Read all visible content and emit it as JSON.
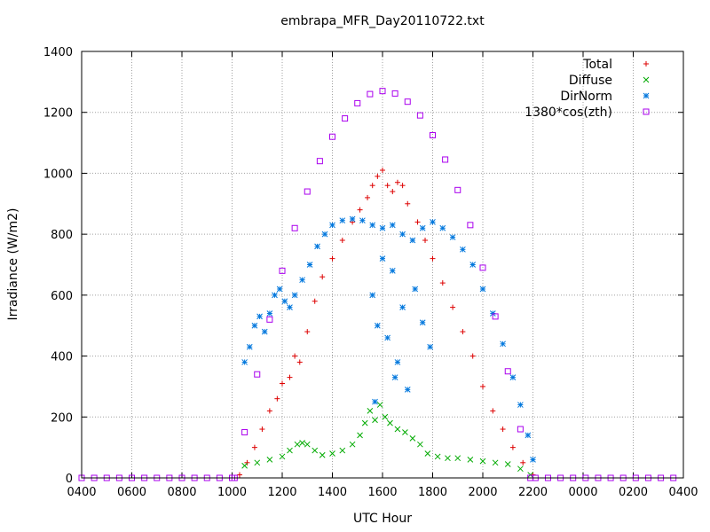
{
  "chart_data": {
    "type": "scatter",
    "title": "embrapa_MFR_Day20110722.txt",
    "xlabel": "UTC Hour",
    "ylabel": "Irradiance (W/m2)",
    "xlim": [
      0,
      24
    ],
    "ylim": [
      0,
      1400
    ],
    "grid": true,
    "legend_position": "top-right",
    "x_ticks": [
      {
        "value": 0,
        "label": "0400"
      },
      {
        "value": 2,
        "label": "0600"
      },
      {
        "value": 4,
        "label": "0800"
      },
      {
        "value": 6,
        "label": "1000"
      },
      {
        "value": 8,
        "label": "1200"
      },
      {
        "value": 10,
        "label": "1400"
      },
      {
        "value": 12,
        "label": "1600"
      },
      {
        "value": 14,
        "label": "1800"
      },
      {
        "value": 16,
        "label": "2000"
      },
      {
        "value": 18,
        "label": "2200"
      },
      {
        "value": 20,
        "label": "0000"
      },
      {
        "value": 22,
        "label": "0200"
      },
      {
        "value": 24,
        "label": "0400"
      }
    ],
    "y_ticks": [
      0,
      200,
      400,
      600,
      800,
      1000,
      1200,
      1400
    ],
    "series": [
      {
        "name": "Total",
        "marker": "plus",
        "color": "#dd0000",
        "points": [
          [
            6.3,
            10
          ],
          [
            6.6,
            50
          ],
          [
            6.9,
            100
          ],
          [
            7.2,
            160
          ],
          [
            7.5,
            220
          ],
          [
            7.8,
            260
          ],
          [
            8.0,
            310
          ],
          [
            8.3,
            330
          ],
          [
            8.5,
            400
          ],
          [
            8.7,
            380
          ],
          [
            9.0,
            480
          ],
          [
            9.3,
            580
          ],
          [
            9.6,
            660
          ],
          [
            10.0,
            720
          ],
          [
            10.4,
            780
          ],
          [
            10.8,
            840
          ],
          [
            11.1,
            880
          ],
          [
            11.4,
            920
          ],
          [
            11.6,
            960
          ],
          [
            11.8,
            990
          ],
          [
            12.0,
            1010
          ],
          [
            12.2,
            960
          ],
          [
            12.4,
            940
          ],
          [
            12.6,
            970
          ],
          [
            12.8,
            960
          ],
          [
            13.0,
            900
          ],
          [
            13.4,
            840
          ],
          [
            13.7,
            780
          ],
          [
            14.0,
            720
          ],
          [
            14.4,
            640
          ],
          [
            14.8,
            560
          ],
          [
            15.2,
            480
          ],
          [
            15.6,
            400
          ],
          [
            16.0,
            300
          ],
          [
            16.4,
            220
          ],
          [
            16.8,
            160
          ],
          [
            17.2,
            100
          ],
          [
            17.6,
            50
          ],
          [
            18.0,
            10
          ]
        ]
      },
      {
        "name": "Diffuse",
        "marker": "cross",
        "color": "#00aa00",
        "points": [
          [
            6.5,
            40
          ],
          [
            7.0,
            50
          ],
          [
            7.5,
            60
          ],
          [
            8.0,
            70
          ],
          [
            8.3,
            90
          ],
          [
            8.6,
            110
          ],
          [
            8.8,
            115
          ],
          [
            9.0,
            110
          ],
          [
            9.3,
            90
          ],
          [
            9.6,
            75
          ],
          [
            10.0,
            80
          ],
          [
            10.4,
            90
          ],
          [
            10.8,
            110
          ],
          [
            11.1,
            140
          ],
          [
            11.3,
            180
          ],
          [
            11.5,
            220
          ],
          [
            11.7,
            190
          ],
          [
            11.9,
            240
          ],
          [
            12.1,
            200
          ],
          [
            12.3,
            180
          ],
          [
            12.6,
            160
          ],
          [
            12.9,
            150
          ],
          [
            13.2,
            130
          ],
          [
            13.5,
            110
          ],
          [
            13.8,
            80
          ],
          [
            14.2,
            70
          ],
          [
            14.6,
            65
          ],
          [
            15.0,
            65
          ],
          [
            15.5,
            60
          ],
          [
            16.0,
            55
          ],
          [
            16.5,
            50
          ],
          [
            17.0,
            45
          ],
          [
            17.5,
            30
          ],
          [
            17.9,
            10
          ]
        ]
      },
      {
        "name": "DirNorm",
        "marker": "star",
        "color": "#0077dd",
        "points": [
          [
            6.5,
            380
          ],
          [
            6.7,
            430
          ],
          [
            6.9,
            500
          ],
          [
            7.1,
            530
          ],
          [
            7.3,
            480
          ],
          [
            7.5,
            540
          ],
          [
            7.7,
            600
          ],
          [
            7.9,
            620
          ],
          [
            8.1,
            580
          ],
          [
            8.3,
            560
          ],
          [
            8.5,
            600
          ],
          [
            8.8,
            650
          ],
          [
            9.1,
            700
          ],
          [
            9.4,
            760
          ],
          [
            9.7,
            800
          ],
          [
            10.0,
            830
          ],
          [
            10.4,
            845
          ],
          [
            10.8,
            850
          ],
          [
            11.2,
            845
          ],
          [
            11.6,
            830
          ],
          [
            12.0,
            820
          ],
          [
            12.4,
            830
          ],
          [
            12.8,
            800
          ],
          [
            13.2,
            780
          ],
          [
            13.6,
            820
          ],
          [
            14.0,
            840
          ],
          [
            14.4,
            820
          ],
          [
            14.8,
            790
          ],
          [
            15.2,
            750
          ],
          [
            15.6,
            700
          ],
          [
            16.0,
            620
          ],
          [
            16.4,
            540
          ],
          [
            16.8,
            440
          ],
          [
            17.2,
            330
          ],
          [
            17.5,
            240
          ],
          [
            17.8,
            140
          ],
          [
            18.0,
            60
          ],
          [
            11.6,
            600
          ],
          [
            11.8,
            500
          ],
          [
            12.0,
            720
          ],
          [
            12.2,
            460
          ],
          [
            12.4,
            680
          ],
          [
            12.6,
            380
          ],
          [
            12.8,
            560
          ],
          [
            13.0,
            290
          ],
          [
            13.3,
            620
          ],
          [
            13.6,
            510
          ],
          [
            13.9,
            430
          ],
          [
            11.7,
            250
          ],
          [
            12.5,
            330
          ]
        ]
      },
      {
        "name": "1380*cos(zth)",
        "marker": "square",
        "color": "#aa00ee",
        "points": [
          [
            6.1,
            0
          ],
          [
            6.5,
            150
          ],
          [
            7.0,
            340
          ],
          [
            7.5,
            520
          ],
          [
            8.0,
            680
          ],
          [
            8.5,
            820
          ],
          [
            9.0,
            940
          ],
          [
            9.5,
            1040
          ],
          [
            10.0,
            1120
          ],
          [
            10.5,
            1180
          ],
          [
            11.0,
            1230
          ],
          [
            11.5,
            1260
          ],
          [
            12.0,
            1270
          ],
          [
            12.5,
            1262
          ],
          [
            13.0,
            1235
          ],
          [
            13.5,
            1190
          ],
          [
            14.0,
            1125
          ],
          [
            14.5,
            1045
          ],
          [
            15.0,
            945
          ],
          [
            15.5,
            830
          ],
          [
            16.0,
            690
          ],
          [
            16.5,
            530
          ],
          [
            17.0,
            350
          ],
          [
            17.5,
            160
          ],
          [
            17.9,
            0
          ]
        ]
      }
    ]
  }
}
